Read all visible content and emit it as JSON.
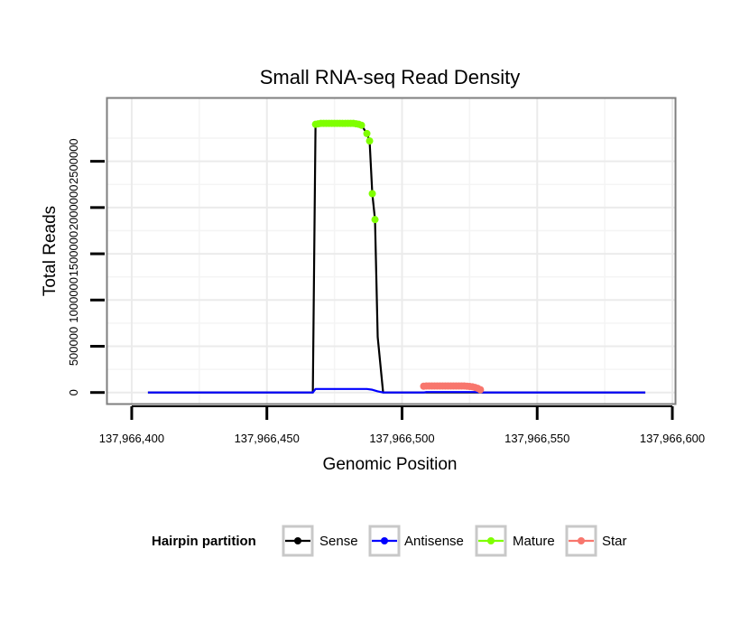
{
  "chart_data": {
    "type": "line",
    "title": "Small RNA-seq Read Density",
    "xlabel": "Genomic Position",
    "ylabel": "Total Reads",
    "xlim": [
      137966391,
      137966601
    ],
    "ylim": [
      -120000,
      3180000
    ],
    "x_ticks": [
      137966400,
      137966450,
      137966500,
      137966550,
      137966600
    ],
    "x_tick_labels": [
      "137,966,400",
      "137,966,450",
      "137,966,500",
      "137,966,550",
      "137,966,600"
    ],
    "y_ticks": [
      0,
      500000,
      1000000,
      1500000,
      2000000,
      2500000
    ],
    "y_tick_labels": [
      "0",
      "500000",
      "1000000",
      "1500000",
      "2000000",
      "2500000"
    ],
    "grid": true,
    "legend": {
      "title": "Hairpin partition",
      "position": "bottom",
      "entries": [
        "Sense",
        "Antisense",
        "Mature",
        "Star"
      ]
    },
    "series": [
      {
        "name": "Sense",
        "color": "#000000",
        "style": "line",
        "x": [
          137966406,
          137966467,
          137966468,
          137966485,
          137966487,
          137966488,
          137966489,
          137966490,
          137966491,
          137966493,
          137966494,
          137966590
        ],
        "y": [
          0,
          0,
          2900000,
          2890000,
          2800000,
          2720000,
          2150000,
          1870000,
          600000,
          0,
          0,
          0
        ]
      },
      {
        "name": "Antisense",
        "color": "#0000ff",
        "style": "line",
        "x": [
          137966406,
          137966467,
          137966468,
          137966485,
          137966487,
          137966489,
          137966491,
          137966493,
          137966508,
          137966509,
          137966527,
          137966530,
          137966590
        ],
        "y": [
          0,
          0,
          38000,
          38000,
          38000,
          30000,
          12000,
          0,
          0,
          5000,
          5000,
          0,
          0
        ]
      },
      {
        "name": "Mature",
        "color": "#7fff00",
        "style": "points",
        "x": [
          137966468,
          137966469,
          137966470,
          137966471,
          137966472,
          137966473,
          137966474,
          137966475,
          137966476,
          137966477,
          137966478,
          137966479,
          137966480,
          137966481,
          137966482,
          137966483,
          137966484,
          137966485,
          137966487,
          137966488,
          137966489,
          137966490
        ],
        "y": [
          2900000,
          2905000,
          2910000,
          2910000,
          2910000,
          2910000,
          2910000,
          2910000,
          2910000,
          2910000,
          2910000,
          2910000,
          2910000,
          2910000,
          2910000,
          2905000,
          2900000,
          2890000,
          2800000,
          2720000,
          2150000,
          1870000
        ]
      },
      {
        "name": "Star",
        "color": "#f8766d",
        "style": "points",
        "x": [
          137966508,
          137966509,
          137966510,
          137966511,
          137966512,
          137966513,
          137966514,
          137966515,
          137966516,
          137966517,
          137966518,
          137966519,
          137966520,
          137966521,
          137966522,
          137966523,
          137966524,
          137966525,
          137966526,
          137966527,
          137966528,
          137966529
        ],
        "y": [
          68000,
          70000,
          70000,
          70000,
          70000,
          70000,
          70000,
          70000,
          70000,
          70000,
          70000,
          70000,
          70000,
          70000,
          70000,
          70000,
          68000,
          65000,
          62000,
          55000,
          45000,
          30000
        ]
      }
    ]
  }
}
